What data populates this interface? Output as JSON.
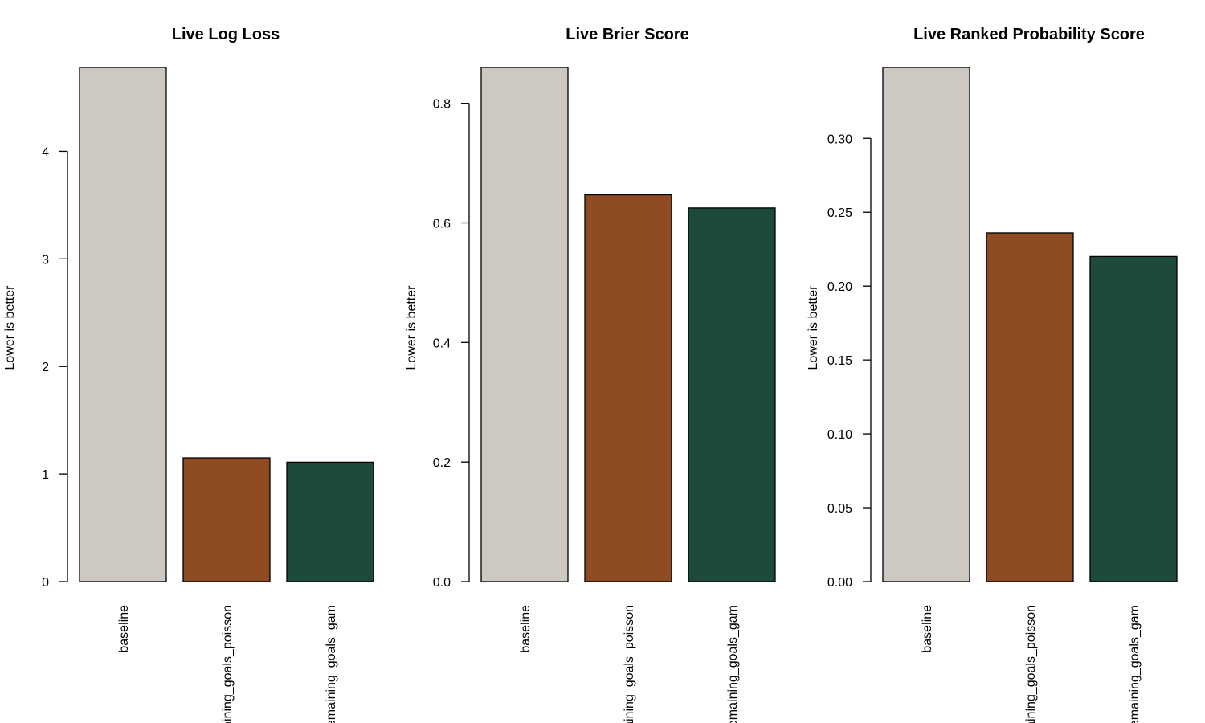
{
  "chart_data": [
    {
      "type": "bar",
      "title": "Live Log Loss",
      "ylabel": "Lower is better",
      "xlabel": "",
      "categories": [
        "baseline",
        "remaining_goals_poisson",
        "remaining_goals_gam"
      ],
      "values": [
        4.78,
        1.15,
        1.11
      ],
      "yticks": [
        0,
        1,
        2,
        3,
        4
      ],
      "ylim": [
        0,
        4.78
      ],
      "colors": [
        "#cdc9c2",
        "#8f4c23",
        "#1d4a3a"
      ]
    },
    {
      "type": "bar",
      "title": "Live Brier Score",
      "ylabel": "Lower is better",
      "xlabel": "",
      "categories": [
        "baseline",
        "remaining_goals_poisson",
        "remaining_goals_gam"
      ],
      "values": [
        0.86,
        0.647,
        0.625
      ],
      "yticks": [
        0.0,
        0.2,
        0.4,
        0.6,
        0.8
      ],
      "tick_labels": [
        "0.0",
        "0.2",
        "0.4",
        "0.6",
        "0.8"
      ],
      "ylim": [
        0,
        0.86
      ],
      "colors": [
        "#cdc9c2",
        "#8f4c23",
        "#1d4a3a"
      ]
    },
    {
      "type": "bar",
      "title": "Live Ranked Probability Score",
      "ylabel": "Lower is better",
      "xlabel": "",
      "categories": [
        "baseline",
        "remaining_goals_poisson",
        "remaining_goals_gam"
      ],
      "values": [
        0.348,
        0.236,
        0.22
      ],
      "yticks": [
        0.0,
        0.05,
        0.1,
        0.15,
        0.2,
        0.25,
        0.3
      ],
      "tick_labels": [
        "0.00",
        "0.05",
        "0.10",
        "0.15",
        "0.20",
        "0.25",
        "0.30"
      ],
      "ylim": [
        0,
        0.348
      ],
      "colors": [
        "#cdc9c2",
        "#8f4c23",
        "#1d4a3a"
      ]
    }
  ]
}
